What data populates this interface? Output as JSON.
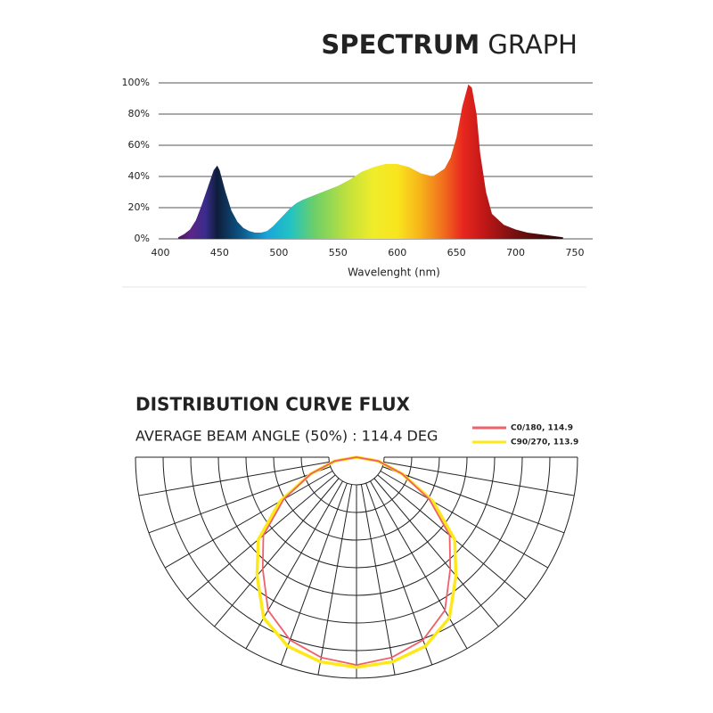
{
  "chart_data": [
    {
      "type": "area",
      "title": {
        "bold": "SPECTRUM",
        "regular": "GRAPH"
      },
      "x_label": "Wavelenght (nm)",
      "x": [
        415,
        420,
        425,
        430,
        435,
        440,
        445,
        448,
        450,
        455,
        460,
        465,
        470,
        475,
        480,
        485,
        490,
        495,
        500,
        505,
        510,
        515,
        520,
        530,
        540,
        550,
        560,
        570,
        580,
        590,
        600,
        610,
        620,
        630,
        640,
        645,
        650,
        655,
        660,
        663,
        667,
        670,
        675,
        680,
        690,
        700,
        710,
        720,
        730,
        740
      ],
      "values": [
        1,
        3,
        6,
        12,
        22,
        33,
        44,
        47,
        44,
        30,
        18,
        11,
        7,
        5,
        4,
        4,
        5,
        8,
        12,
        16,
        20,
        23,
        25,
        28,
        31,
        34,
        38,
        43,
        46,
        48,
        48,
        46,
        42,
        40,
        45,
        52,
        65,
        85,
        99,
        97,
        80,
        55,
        30,
        16,
        9,
        6,
        4,
        3,
        2,
        1
      ],
      "xlim": [
        400,
        750
      ],
      "xticks": [
        400,
        450,
        500,
        550,
        600,
        650,
        700,
        750
      ],
      "ylim": [
        0,
        100
      ],
      "yticks": [
        {
          "value": 0,
          "label": "0%"
        },
        {
          "value": 20,
          "label": "20%"
        },
        {
          "value": 40,
          "label": "40%"
        },
        {
          "value": 60,
          "label": "60%"
        },
        {
          "value": 80,
          "label": "80%"
        },
        {
          "value": 100,
          "label": "100%"
        }
      ],
      "grid": true,
      "gradient": [
        {
          "wavelength": 415,
          "color": "#4a1560"
        },
        {
          "wavelength": 425,
          "color": "#5e2486"
        },
        {
          "wavelength": 438,
          "color": "#3a2c8c"
        },
        {
          "wavelength": 448,
          "color": "#0e1d3a"
        },
        {
          "wavelength": 468,
          "color": "#0d5688"
        },
        {
          "wavelength": 490,
          "color": "#1aa5da"
        },
        {
          "wavelength": 510,
          "color": "#22c3c2"
        },
        {
          "wavelength": 530,
          "color": "#6ccf69"
        },
        {
          "wavelength": 560,
          "color": "#c6e23a"
        },
        {
          "wavelength": 580,
          "color": "#f0ec2a"
        },
        {
          "wavelength": 600,
          "color": "#f8e51e"
        },
        {
          "wavelength": 620,
          "color": "#f7b21a"
        },
        {
          "wavelength": 640,
          "color": "#f06a1e"
        },
        {
          "wavelength": 655,
          "color": "#e8281e"
        },
        {
          "wavelength": 672,
          "color": "#c41818"
        },
        {
          "wavelength": 700,
          "color": "#741010"
        },
        {
          "wavelength": 740,
          "color": "#2a0505"
        }
      ]
    },
    {
      "type": "polar",
      "title": "DISTRIBUTION CURVE FLUX",
      "subtitle": "AVERAGE BEAM ANGLE  (50%) : 114.4 DEG",
      "angles": [
        -90,
        -80,
        -70,
        -60,
        -50,
        -40,
        -30,
        -20,
        -10,
        0,
        10,
        20,
        30,
        40,
        50,
        60,
        70,
        80,
        90
      ],
      "rlim": [
        0,
        100
      ],
      "rgrid": [
        12.5,
        25,
        37.5,
        50,
        62.5,
        75,
        87.5,
        100
      ],
      "angle_grid": [
        -90,
        -80,
        -70,
        -60,
        -50,
        -40,
        -30,
        -20,
        -10,
        0,
        10,
        20,
        30,
        40,
        50,
        60,
        70,
        80,
        90
      ],
      "series": [
        {
          "name": "C90/270, 113.9",
          "color": "#ffe81a",
          "values": [
            0,
            10,
            22,
            40,
            58,
            70,
            84,
            91,
            94,
            95,
            94,
            91,
            84,
            70,
            58,
            40,
            22,
            10,
            0
          ]
        },
        {
          "name": "C0/180, 114.9",
          "color": "#f0606a",
          "values": [
            0,
            10,
            22,
            38,
            55,
            66,
            80,
            88,
            92,
            94,
            92,
            88,
            80,
            66,
            55,
            38,
            22,
            10,
            0
          ]
        }
      ]
    }
  ]
}
